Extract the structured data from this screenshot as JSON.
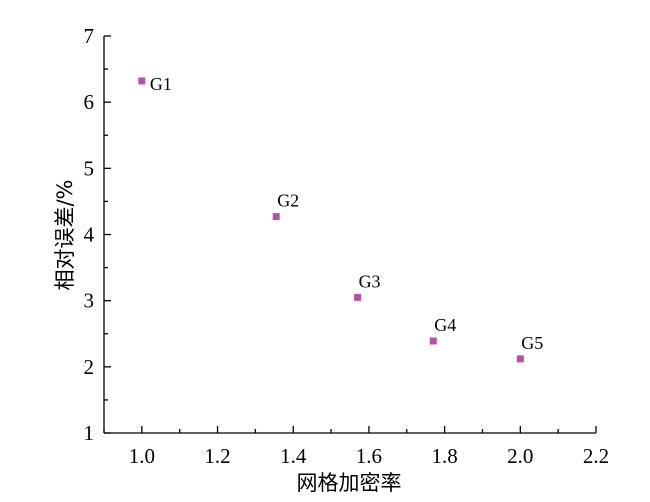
{
  "chart_data": {
    "type": "scatter",
    "xlabel": "网格加密率",
    "ylabel": "相对误差/%",
    "xlim": [
      0.9,
      2.2
    ],
    "ylim": [
      1,
      7
    ],
    "x_ticks": [
      "1.0",
      "1.2",
      "1.4",
      "1.6",
      "1.8",
      "2.0",
      "2.2"
    ],
    "y_ticks": [
      "1",
      "2",
      "3",
      "4",
      "5",
      "6",
      "7"
    ],
    "marker_color": "#b84fa8",
    "grid": false,
    "points": [
      {
        "label": "G1",
        "x": 1.0,
        "y": 6.32
      },
      {
        "label": "G2",
        "x": 1.355,
        "y": 4.27
      },
      {
        "label": "G3",
        "x": 1.57,
        "y": 3.05
      },
      {
        "label": "G4",
        "x": 1.77,
        "y": 2.39
      },
      {
        "label": "G5",
        "x": 2.0,
        "y": 2.12
      }
    ]
  }
}
